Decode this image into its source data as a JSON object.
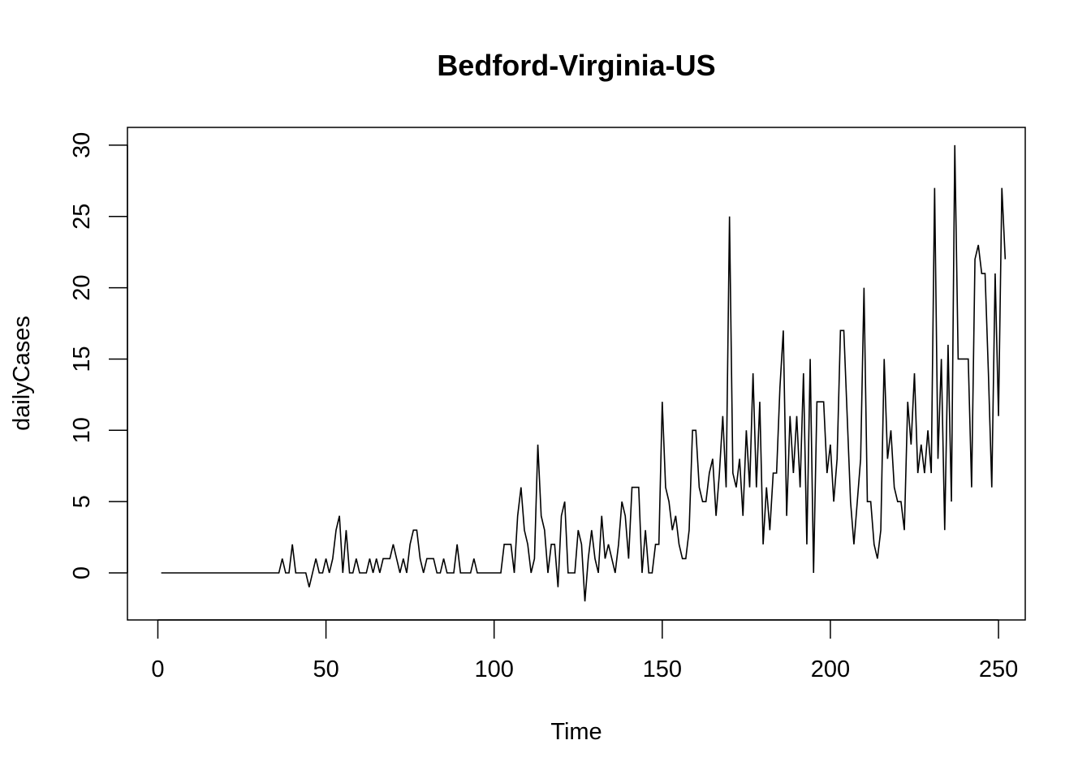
{
  "chart_data": {
    "type": "line",
    "title": "Bedford-Virginia-US",
    "xlabel": "Time",
    "ylabel": "dailyCases",
    "xlim": [
      1,
      248
    ],
    "ylim": [
      -2,
      30
    ],
    "x_ticks": [
      0,
      50,
      100,
      150,
      200,
      250
    ],
    "x_tick_labels": [
      "0",
      "50",
      "100",
      "150",
      "200",
      "250"
    ],
    "y_ticks": [
      0,
      5,
      10,
      15,
      20,
      25,
      30
    ],
    "y_tick_labels": [
      "0",
      "5",
      "10",
      "15",
      "20",
      "25",
      "30"
    ],
    "grid": false,
    "legend": "none",
    "line_color": "#000000",
    "series": [
      {
        "x_start": 1,
        "values": [
          0,
          0,
          0,
          0,
          0,
          0,
          0,
          0,
          0,
          0,
          0,
          0,
          0,
          0,
          0,
          0,
          0,
          0,
          0,
          0,
          0,
          0,
          0,
          0,
          0,
          0,
          0,
          0,
          0,
          0,
          0,
          0,
          0,
          0,
          0,
          0,
          1,
          0,
          0,
          2,
          0,
          0,
          0,
          0,
          -1,
          0,
          1,
          0,
          0,
          1,
          0,
          1,
          3,
          4,
          0,
          3,
          0,
          0,
          1,
          0,
          0,
          0,
          1,
          0,
          1,
          0,
          1,
          1,
          1,
          2,
          1,
          0,
          1,
          0,
          2,
          3,
          3,
          1,
          0,
          1,
          1,
          1,
          0,
          0,
          1,
          0,
          0,
          0,
          2,
          0,
          0,
          0,
          0,
          1,
          0,
          0,
          0,
          0,
          0,
          0,
          0,
          0,
          2,
          2,
          2,
          0,
          4,
          6,
          3,
          2,
          0,
          1,
          9,
          4,
          3,
          0,
          2,
          2,
          -1,
          4,
          5,
          0,
          0,
          0,
          3,
          2,
          -2,
          1,
          3,
          1,
          0,
          4,
          1,
          2,
          1,
          0,
          2,
          5,
          4,
          1,
          6,
          6,
          6,
          0,
          3,
          0,
          0,
          2,
          2,
          12,
          6,
          5,
          3,
          4,
          2,
          1,
          1,
          3,
          10,
          10,
          6,
          5,
          5,
          7,
          8,
          4,
          7,
          11,
          6,
          25,
          7,
          6,
          8,
          4,
          10,
          6,
          14,
          6,
          12,
          2,
          6,
          3,
          7,
          7,
          13,
          17,
          4,
          11,
          7,
          11,
          6,
          14,
          2,
          15,
          0,
          12,
          12,
          12,
          7,
          9,
          5,
          8,
          17,
          17,
          11,
          5,
          2,
          5,
          8,
          20,
          5,
          5,
          2,
          1,
          3,
          15,
          8,
          10,
          6,
          5,
          5,
          3,
          12,
          9,
          14,
          7,
          9,
          7,
          10,
          7,
          27,
          8,
          15,
          3,
          16,
          5,
          30,
          15,
          15,
          15,
          15,
          6,
          22,
          23,
          21,
          21,
          14,
          6,
          21,
          11,
          27,
          22
        ]
      }
    ]
  }
}
